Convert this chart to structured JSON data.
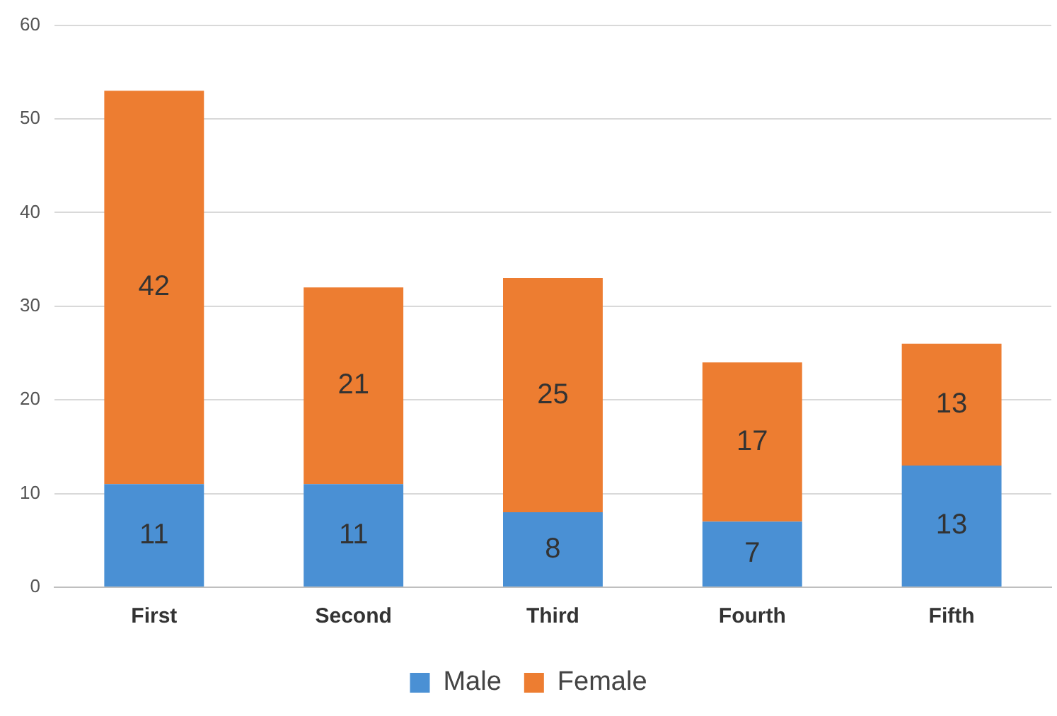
{
  "chart_data": {
    "type": "bar",
    "stacked": true,
    "categories": [
      "First",
      "Second",
      "Third",
      "Fourth",
      "Fifth"
    ],
    "series": [
      {
        "name": "Male",
        "color": "#4a90d4",
        "values": [
          11,
          11,
          8,
          7,
          13
        ]
      },
      {
        "name": "Female",
        "color": "#ed7d31",
        "values": [
          42,
          21,
          25,
          17,
          13
        ]
      }
    ],
    "ylim": [
      0,
      60
    ],
    "yticks": [
      0,
      10,
      20,
      30,
      40,
      50,
      60
    ],
    "grid": "y",
    "legend": "bottom",
    "data_labels": true
  }
}
